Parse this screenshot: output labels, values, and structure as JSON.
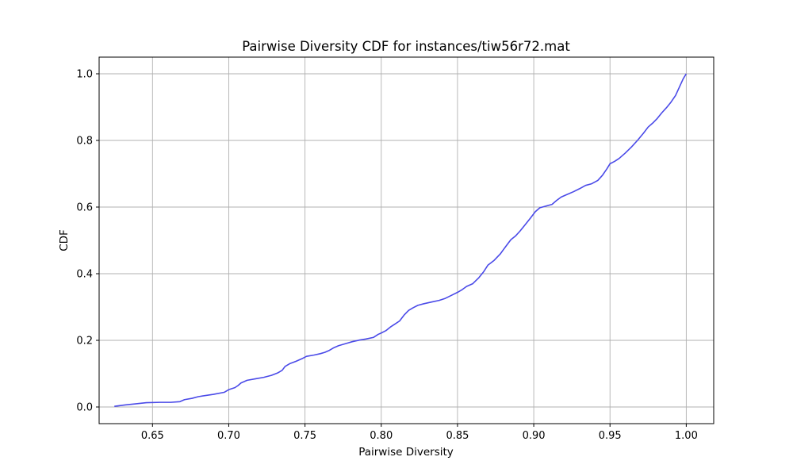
{
  "chart_data": {
    "type": "line",
    "title": "Pairwise Diversity CDF for instances/tiw56r72.mat",
    "xlabel": "Pairwise Diversity",
    "ylabel": "CDF",
    "xlim": [
      0.615,
      1.018
    ],
    "ylim": [
      -0.05,
      1.05
    ],
    "xticks": [
      0.65,
      0.7,
      0.75,
      0.8,
      0.85,
      0.9,
      0.95,
      1.0
    ],
    "xtick_labels": [
      "0.65",
      "0.70",
      "0.75",
      "0.80",
      "0.85",
      "0.90",
      "0.95",
      "1.00"
    ],
    "yticks": [
      0.0,
      0.2,
      0.4,
      0.6,
      0.8,
      1.0
    ],
    "ytick_labels": [
      "0.0",
      "0.2",
      "0.4",
      "0.6",
      "0.8",
      "1.0"
    ],
    "grid": true,
    "series": [
      {
        "color": "#4a4ae8",
        "x": [
          0.625,
          0.632,
          0.64,
          0.646,
          0.655,
          0.662,
          0.668,
          0.671,
          0.676,
          0.68,
          0.69,
          0.697,
          0.7,
          0.704,
          0.706,
          0.708,
          0.712,
          0.718,
          0.723,
          0.728,
          0.732,
          0.735,
          0.737,
          0.74,
          0.744,
          0.748,
          0.751,
          0.756,
          0.76,
          0.763,
          0.766,
          0.769,
          0.772,
          0.778,
          0.781,
          0.786,
          0.79,
          0.795,
          0.798,
          0.8,
          0.803,
          0.806,
          0.809,
          0.812,
          0.815,
          0.818,
          0.821,
          0.824,
          0.828,
          0.833,
          0.838,
          0.842,
          0.846,
          0.85,
          0.853,
          0.856,
          0.86,
          0.864,
          0.867,
          0.87,
          0.874,
          0.878,
          0.882,
          0.885,
          0.888,
          0.891,
          0.894,
          0.898,
          0.901,
          0.904,
          0.908,
          0.912,
          0.915,
          0.918,
          0.922,
          0.926,
          0.93,
          0.934,
          0.938,
          0.942,
          0.945,
          0.948,
          0.95,
          0.953,
          0.956,
          0.96,
          0.964,
          0.968,
          0.972,
          0.975,
          0.978,
          0.981,
          0.984,
          0.987,
          0.99,
          0.993,
          0.996,
          0.998,
          1.0
        ],
        "y": [
          0.002,
          0.006,
          0.01,
          0.013,
          0.014,
          0.014,
          0.016,
          0.022,
          0.026,
          0.031,
          0.038,
          0.044,
          0.052,
          0.058,
          0.064,
          0.072,
          0.08,
          0.085,
          0.089,
          0.095,
          0.102,
          0.11,
          0.122,
          0.13,
          0.137,
          0.145,
          0.152,
          0.156,
          0.16,
          0.164,
          0.17,
          0.178,
          0.184,
          0.192,
          0.196,
          0.201,
          0.204,
          0.209,
          0.218,
          0.222,
          0.229,
          0.24,
          0.249,
          0.258,
          0.276,
          0.29,
          0.298,
          0.305,
          0.31,
          0.315,
          0.32,
          0.326,
          0.335,
          0.344,
          0.352,
          0.362,
          0.37,
          0.388,
          0.405,
          0.426,
          0.44,
          0.459,
          0.484,
          0.502,
          0.513,
          0.528,
          0.545,
          0.568,
          0.586,
          0.598,
          0.603,
          0.608,
          0.62,
          0.63,
          0.638,
          0.646,
          0.655,
          0.665,
          0.67,
          0.68,
          0.695,
          0.715,
          0.73,
          0.737,
          0.746,
          0.762,
          0.78,
          0.8,
          0.822,
          0.84,
          0.852,
          0.866,
          0.883,
          0.898,
          0.915,
          0.935,
          0.965,
          0.985,
          1.0
        ]
      }
    ]
  }
}
